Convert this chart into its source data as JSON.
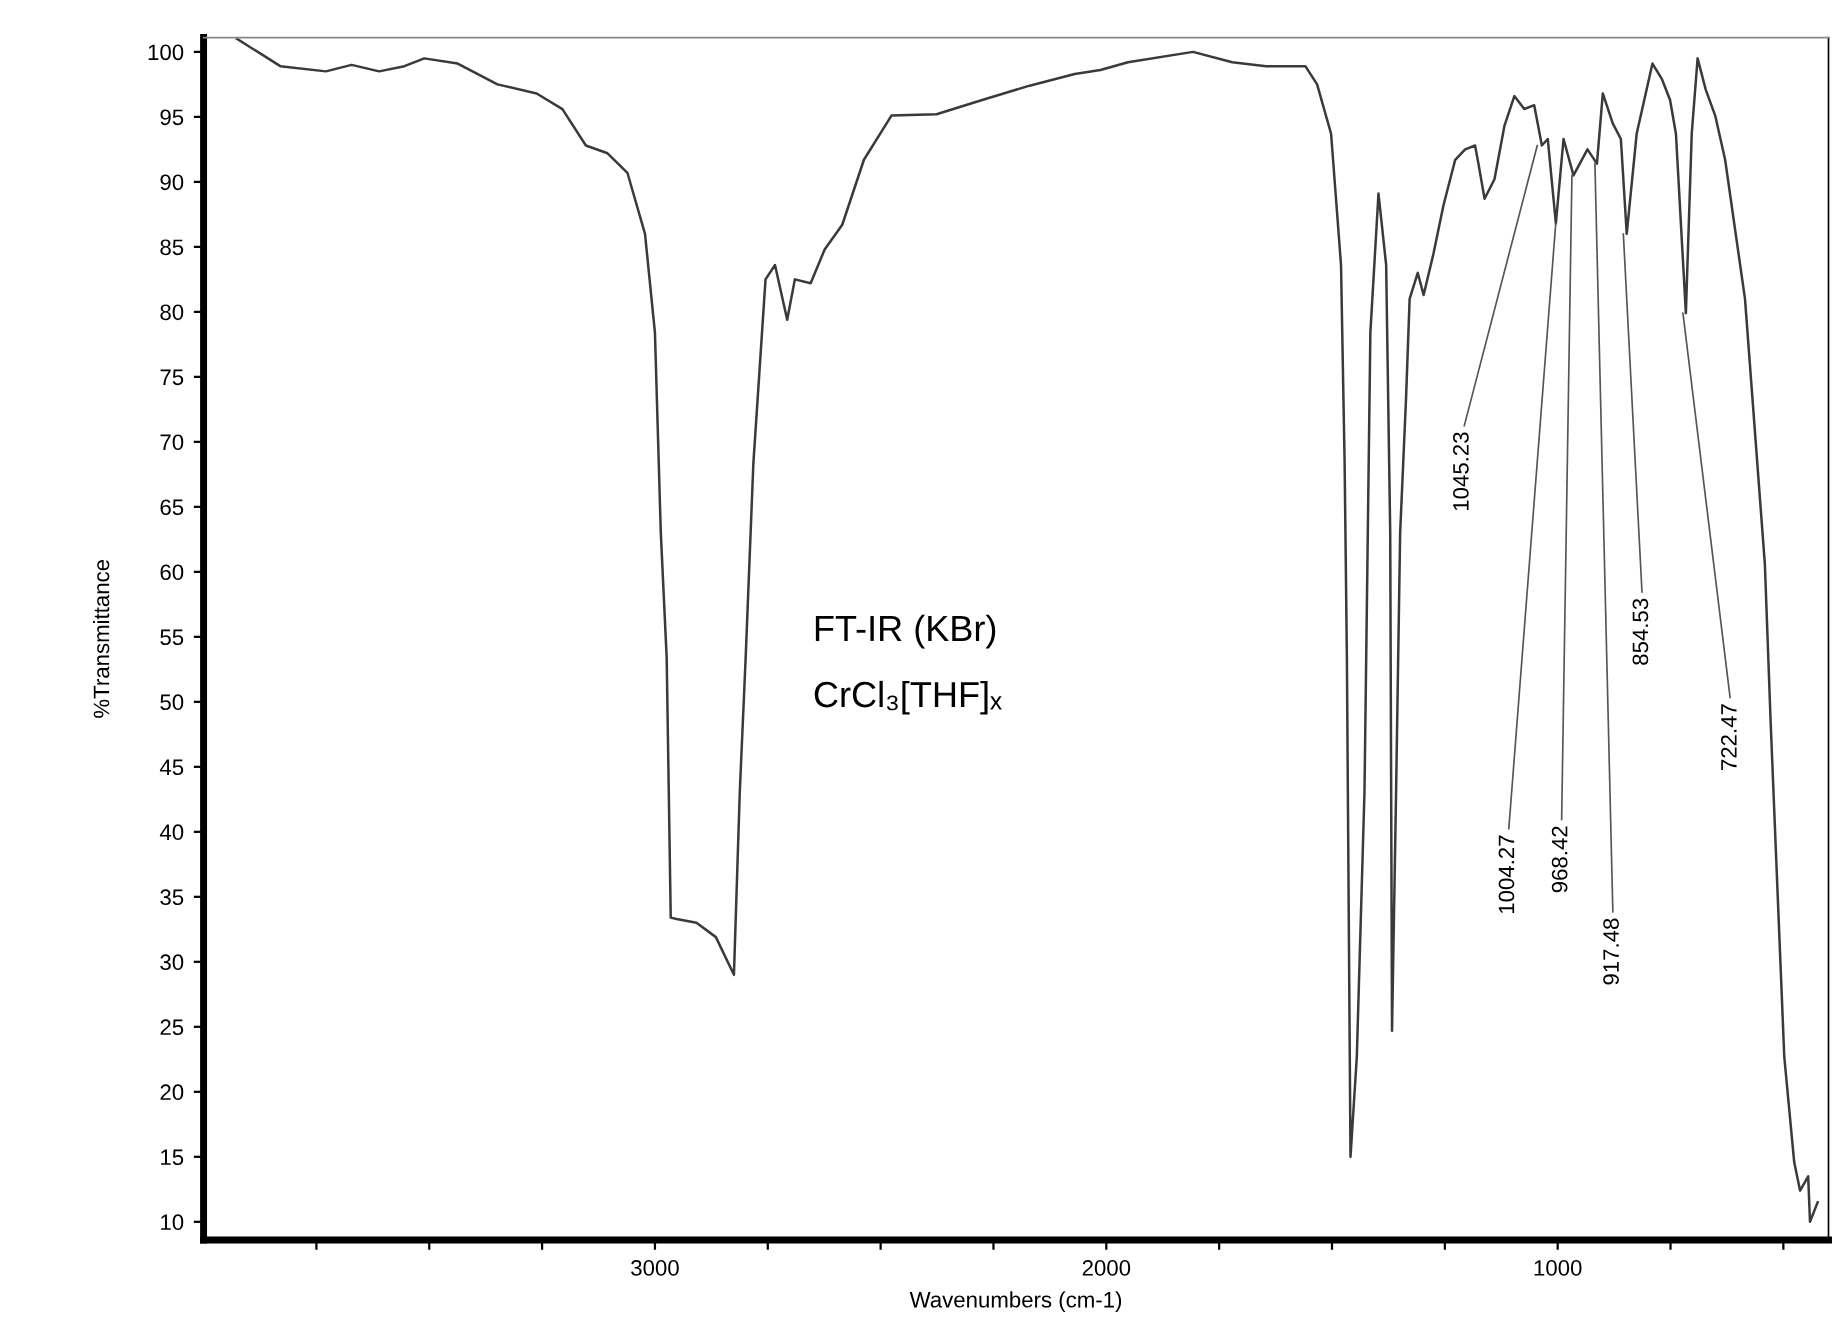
{
  "chart_data": {
    "type": "line",
    "xlabel": "Wavenumbers (cm-1)",
    "ylabel": "%Transmittance",
    "x": [
      3926,
      3830,
      3729,
      3672,
      3611,
      3555,
      3511,
      3437,
      3349,
      3262,
      3205,
      3153,
      3105,
      3061,
      3022,
      3000,
      2987,
      2974,
      2965,
      2952,
      2908,
      2865,
      2825,
      2812,
      2799,
      2782,
      2755,
      2734,
      2707,
      2690,
      2655,
      2624,
      2585,
      2537,
      2476,
      2376,
      2275,
      2170,
      2070,
      2013,
      1952,
      1808,
      1721,
      1646,
      1559,
      1533,
      1502,
      1480,
      1472,
      1467,
      1459,
      1445,
      1428,
      1415,
      1397,
      1380,
      1371,
      1367,
      1358,
      1349,
      1336,
      1328,
      1310,
      1297,
      1275,
      1253,
      1227,
      1205,
      1183,
      1175,
      1162,
      1140,
      1118,
      1096,
      1074,
      1052,
      1035,
      1022,
      1004,
      987,
      965,
      934,
      913,
      900,
      878,
      860,
      847,
      825,
      790,
      769,
      751,
      738,
      716,
      703,
      690,
      672,
      651,
      629,
      585,
      541,
      528,
      498,
      476,
      463,
      445,
      441,
      424
    ],
    "series": [
      {
        "color": "#3a3a3a",
        "values": [
          101.0,
          98.9,
          98.5,
          99,
          98.5,
          98.9,
          99.5,
          99.1,
          97.5,
          96.8,
          95.6,
          92.8,
          92.2,
          90.7,
          86,
          78.4,
          63,
          53.4,
          33.4,
          33.3,
          33,
          31.9,
          29,
          43.1,
          53.4,
          68.3,
          82.5,
          83.6,
          79.4,
          82.5,
          82.2,
          84.8,
          86.7,
          91.7,
          95.1,
          95.2,
          96.3,
          97.4,
          98.3,
          98.6,
          99.2,
          100,
          99.2,
          98.9,
          98.9,
          97.5,
          93.7,
          83.6,
          68.3,
          53.4,
          15,
          22.7,
          43.1,
          78.4,
          89.1,
          83.6,
          63,
          24.7,
          43.1,
          63,
          73.3,
          81,
          83,
          81.3,
          84.5,
          88.2,
          91.7,
          92.5,
          92.8,
          91.3,
          88.7,
          90.2,
          94.3,
          96.6,
          95.6,
          95.9,
          92.8,
          93.3,
          86.8,
          93.3,
          90.5,
          92.5,
          91.4,
          96.8,
          94.5,
          93.3,
          86,
          93.7,
          99.1,
          97.9,
          96.3,
          93.7,
          79.9,
          93.7,
          99.5,
          97.1,
          95.1,
          91.7,
          81,
          60.6,
          48.3,
          22.7,
          14.6,
          12.4,
          13.5,
          10,
          11.5
        ]
      }
    ],
    "xlim": [
      4000,
      400
    ],
    "ylim": [
      8.6,
      101.1
    ],
    "xticks": [
      {
        "value": 3750,
        "label": null
      },
      {
        "value": 3500,
        "label": null
      },
      {
        "value": 3250,
        "label": null
      },
      3000,
      {
        "value": 2750,
        "label": null
      },
      {
        "value": 2500,
        "label": null
      },
      {
        "value": 2250,
        "label": null
      },
      2000,
      {
        "value": 1750,
        "label": null
      },
      {
        "value": 1500,
        "label": null
      },
      {
        "value": 1250,
        "label": null
      },
      1000,
      {
        "value": 750,
        "label": null
      },
      {
        "value": 500,
        "label": null
      }
    ],
    "yticks": [
      10,
      15,
      20,
      25,
      30,
      35,
      40,
      45,
      50,
      55,
      60,
      65,
      70,
      75,
      80,
      85,
      90,
      95,
      100
    ],
    "grid": false,
    "legend": false,
    "annotations": [
      "FT-IR (KBr)",
      "CrCl₃[THF]ₓ",
      {
        "text": "1045.23",
        "x": 1045.23,
        "y": 92.8
      },
      {
        "text": "1004.27",
        "x": 1004.27,
        "y": 86.8
      },
      {
        "text": "968.42",
        "x": 968.42,
        "y": 90.5
      },
      {
        "text": "917.48",
        "x": 917.48,
        "y": 91.4
      },
      {
        "text": "854.53",
        "x": 854.53,
        "y": 86
      },
      {
        "text": "722.47",
        "x": 722.47,
        "y": 79.9
      }
    ]
  }
}
